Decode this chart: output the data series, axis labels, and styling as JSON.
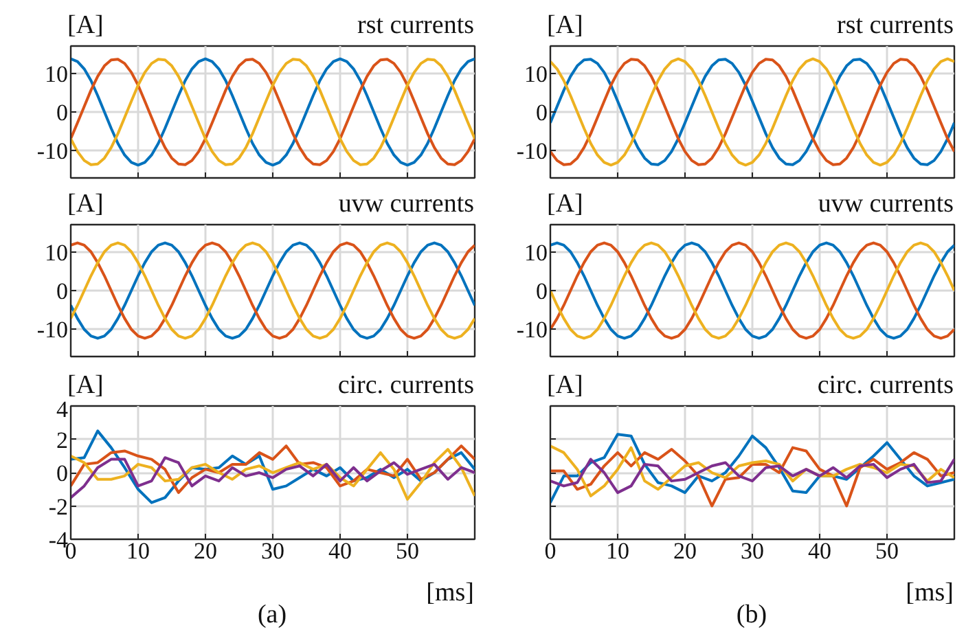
{
  "chart_data": [
    {
      "type": "line",
      "title": "rst currents",
      "ylabel": "[A]",
      "xlim": [
        0,
        60
      ],
      "xticks": [
        0,
        10,
        20,
        30,
        40,
        50
      ],
      "ylim": [
        -17,
        17
      ],
      "yticks": [
        {
          "value": -10,
          "label": "-10"
        },
        0,
        10
      ],
      "grid": true,
      "tick_labels": "y",
      "x": [
        0,
        1,
        2,
        3,
        4,
        5,
        6,
        7,
        8,
        9,
        10,
        11,
        12,
        13,
        14,
        15,
        16,
        17,
        18,
        19,
        20,
        21,
        22,
        23,
        24,
        25,
        26,
        27,
        28,
        29,
        30,
        31,
        32,
        33,
        34,
        35,
        36,
        37,
        38,
        39,
        40,
        41,
        42,
        43,
        44,
        45,
        46,
        47,
        48,
        49,
        50,
        51,
        52,
        53,
        54,
        55,
        56,
        57,
        58,
        59,
        60
      ],
      "series": [
        {
          "color": "#0072bd",
          "values": [
            13.7,
            13.0,
            11.1,
            8.1,
            4.2,
            0,
            -4.2,
            -8.1,
            -11.1,
            -13.0,
            -13.7,
            -13.0,
            -11.1,
            -8.1,
            -4.2,
            0,
            4.2,
            8.1,
            11.1,
            13.0,
            13.7,
            13.0,
            11.1,
            8.1,
            4.2,
            0,
            -4.2,
            -8.1,
            -11.1,
            -13.0,
            -13.7,
            -13.0,
            -11.1,
            -8.1,
            -4.2,
            0,
            4.2,
            8.1,
            11.1,
            13.0,
            13.7,
            13.0,
            11.1,
            8.1,
            4.2,
            0,
            -4.2,
            -8.1,
            -11.1,
            -13.0,
            -13.7,
            -13.0,
            -11.1,
            -8.1,
            -4.2,
            0,
            4.2,
            8.1,
            11.1,
            13.0,
            13.7
          ]
        },
        {
          "color": "#d95319",
          "values": [
            -6.9,
            -2.8,
            1.4,
            5.6,
            9.2,
            11.9,
            13.4,
            13.6,
            12.5,
            10.2,
            6.9,
            2.8,
            -1.4,
            -5.6,
            -9.2,
            -11.9,
            -13.4,
            -13.6,
            -12.5,
            -10.2,
            -6.9,
            -2.8,
            1.4,
            5.6,
            9.2,
            11.9,
            13.4,
            13.6,
            12.5,
            10.2,
            6.9,
            2.8,
            -1.4,
            -5.6,
            -9.2,
            -11.9,
            -13.4,
            -13.6,
            -12.5,
            -10.2,
            -6.9,
            -2.8,
            1.4,
            5.6,
            9.2,
            11.9,
            13.4,
            13.6,
            12.5,
            10.2,
            6.9,
            2.8,
            -1.4,
            -5.6,
            -9.2,
            -11.9,
            -13.4,
            -13.6,
            -12.5,
            -10.2,
            -6.9
          ]
        },
        {
          "color": "#edb120",
          "values": [
            -6.9,
            -10.2,
            -12.5,
            -13.6,
            -13.4,
            -11.9,
            -9.2,
            -5.6,
            -1.4,
            2.8,
            6.9,
            10.2,
            12.5,
            13.6,
            13.4,
            11.9,
            9.2,
            5.6,
            1.4,
            -2.8,
            -6.9,
            -10.2,
            -12.5,
            -13.6,
            -13.4,
            -11.9,
            -9.2,
            -5.6,
            -1.4,
            2.8,
            6.9,
            10.2,
            12.5,
            13.6,
            13.4,
            11.9,
            9.2,
            5.6,
            1.4,
            -2.8,
            -6.9,
            -10.2,
            -12.5,
            -13.6,
            -13.4,
            -11.9,
            -9.2,
            -5.6,
            -1.4,
            2.8,
            6.9,
            10.2,
            12.5,
            13.6,
            13.4,
            11.9,
            9.2,
            5.6,
            1.4,
            -2.8,
            -6.9
          ]
        }
      ]
    },
    {
      "type": "line",
      "title": "rst currents",
      "ylabel": "[A]",
      "xlim": [
        0,
        60
      ],
      "xticks": [
        0,
        10,
        20,
        30,
        40,
        50
      ],
      "ylim": [
        -17,
        17
      ],
      "yticks": [
        {
          "value": -10,
          "label": "-10"
        },
        0,
        10
      ],
      "grid": true,
      "tick_labels": "y",
      "x": [
        0,
        1,
        2,
        3,
        4,
        5,
        6,
        7,
        8,
        9,
        10,
        11,
        12,
        13,
        14,
        15,
        16,
        17,
        18,
        19,
        20,
        21,
        22,
        23,
        24,
        25,
        26,
        27,
        28,
        29,
        30,
        31,
        32,
        33,
        34,
        35,
        36,
        37,
        38,
        39,
        40,
        41,
        42,
        43,
        44,
        45,
        46,
        47,
        48,
        49,
        50,
        51,
        52,
        53,
        54,
        55,
        56,
        57,
        58,
        59,
        60
      ],
      "series": [
        {
          "color": "#0072bd",
          "values": [
            -2.8,
            1.4,
            5.6,
            9.2,
            11.9,
            13.4,
            13.6,
            12.5,
            10.2,
            6.9,
            2.8,
            -1.4,
            -5.6,
            -9.2,
            -11.9,
            -13.4,
            -13.6,
            -12.5,
            -10.2,
            -6.9,
            -2.8,
            1.4,
            5.6,
            9.2,
            11.9,
            13.4,
            13.6,
            12.5,
            10.2,
            6.9,
            2.8,
            -1.4,
            -5.6,
            -9.2,
            -11.9,
            -13.4,
            -13.6,
            -12.5,
            -10.2,
            -6.9,
            -2.8,
            1.4,
            5.6,
            9.2,
            11.9,
            13.4,
            13.6,
            12.5,
            10.2,
            6.9,
            2.8,
            -1.4,
            -5.6,
            -9.2,
            -11.9,
            -13.4,
            -13.6,
            -12.5,
            -10.2,
            -6.9,
            -2.8
          ]
        },
        {
          "color": "#d95319",
          "values": [
            -10.2,
            -12.5,
            -13.6,
            -13.4,
            -11.9,
            -9.2,
            -5.6,
            -1.4,
            2.8,
            6.9,
            10.2,
            12.5,
            13.6,
            13.4,
            11.9,
            9.2,
            5.6,
            1.4,
            -2.8,
            -6.9,
            -10.2,
            -12.5,
            -13.6,
            -13.4,
            -11.9,
            -9.2,
            -5.6,
            -1.4,
            2.8,
            6.9,
            10.2,
            12.5,
            13.6,
            13.4,
            11.9,
            9.2,
            5.6,
            1.4,
            -2.8,
            -6.9,
            -10.2,
            -12.5,
            -13.6,
            -13.4,
            -11.9,
            -9.2,
            -5.6,
            -1.4,
            2.8,
            6.9,
            10.2,
            12.5,
            13.6,
            13.4,
            11.9,
            9.2,
            5.6,
            1.4,
            -2.8,
            -6.9,
            -10.2
          ]
        },
        {
          "color": "#edb120",
          "values": [
            13.0,
            11.1,
            8.1,
            4.2,
            0,
            -4.2,
            -8.1,
            -11.1,
            -13.0,
            -13.7,
            -13.0,
            -11.1,
            -8.1,
            -4.2,
            0,
            4.2,
            8.1,
            11.1,
            13.0,
            13.7,
            13.0,
            11.1,
            8.1,
            4.2,
            0,
            -4.2,
            -8.1,
            -11.1,
            -13.0,
            -13.7,
            -13.0,
            -11.1,
            -8.1,
            -4.2,
            0,
            4.2,
            8.1,
            11.1,
            13.0,
            13.7,
            13.0,
            11.1,
            8.1,
            4.2,
            0,
            -4.2,
            -8.1,
            -11.1,
            -13.0,
            -13.7,
            -13.0,
            -11.1,
            -8.1,
            -4.2,
            0,
            4.2,
            8.1,
            11.1,
            13.0,
            13.7,
            13.0
          ]
        }
      ]
    },
    {
      "type": "line",
      "title": "uvw currents",
      "ylabel": "[A]",
      "xlim": [
        0,
        60
      ],
      "xticks": [
        0,
        10,
        20,
        30,
        40,
        50
      ],
      "ylim": [
        -17,
        17
      ],
      "yticks": [
        {
          "value": -10,
          "label": "-10"
        },
        0,
        10
      ],
      "grid": true,
      "tick_labels": "y",
      "x": [
        0,
        1,
        2,
        3,
        4,
        5,
        6,
        7,
        8,
        9,
        10,
        11,
        12,
        13,
        14,
        15,
        16,
        17,
        18,
        19,
        20,
        21,
        22,
        23,
        24,
        25,
        26,
        27,
        28,
        29,
        30,
        31,
        32,
        33,
        34,
        35,
        36,
        37,
        38,
        39,
        40,
        41,
        42,
        43,
        44,
        45,
        46,
        47,
        48,
        49,
        50,
        51,
        52,
        53,
        54,
        55,
        56,
        57,
        58,
        59,
        60
      ],
      "series": [
        {
          "color": "#0072bd",
          "values": [
            -3.8,
            -7.2,
            -10.0,
            -11.7,
            -12.3,
            -11.7,
            -10.0,
            -7.2,
            -3.8,
            0,
            3.8,
            7.2,
            10.0,
            11.7,
            12.3,
            11.7,
            10.0,
            7.2,
            3.8,
            0,
            -3.8,
            -7.2,
            -10.0,
            -11.7,
            -12.3,
            -11.7,
            -10.0,
            -7.2,
            -3.8,
            0,
            3.8,
            7.2,
            10.0,
            11.7,
            12.3,
            11.7,
            10.0,
            7.2,
            3.8,
            0,
            -3.8,
            -7.2,
            -10.0,
            -11.7,
            -12.3,
            -11.7,
            -10.0,
            -7.2,
            -3.8,
            0,
            3.8,
            7.2,
            10.0,
            11.7,
            12.3,
            11.7,
            10.0,
            7.2,
            3.8,
            0,
            -3.8
          ]
        },
        {
          "color": "#d95319",
          "values": [
            11.7,
            12.3,
            11.7,
            10.0,
            7.2,
            3.8,
            0,
            -3.8,
            -7.2,
            -10.0,
            -11.7,
            -12.3,
            -11.7,
            -10.0,
            -7.2,
            -3.8,
            0,
            3.8,
            7.2,
            10.0,
            11.7,
            12.3,
            11.7,
            10.0,
            7.2,
            3.8,
            0,
            -3.8,
            -7.2,
            -10.0,
            -11.7,
            -12.3,
            -11.7,
            -10.0,
            -7.2,
            -3.8,
            0,
            3.8,
            7.2,
            10.0,
            11.7,
            12.3,
            11.7,
            10.0,
            7.2,
            3.8,
            0,
            -3.8,
            -7.2,
            -10.0,
            -11.7,
            -12.3,
            -11.7,
            -10.0,
            -7.2,
            -3.8,
            0,
            3.8,
            7.2,
            10.0,
            11.7
          ]
        },
        {
          "color": "#edb120",
          "values": [
            -7.2,
            -3.8,
            0,
            3.8,
            7.2,
            10.0,
            11.7,
            12.3,
            11.7,
            10.0,
            7.2,
            3.8,
            0,
            -3.8,
            -7.2,
            -10.0,
            -11.7,
            -12.3,
            -11.7,
            -10.0,
            -7.2,
            -3.8,
            0,
            3.8,
            7.2,
            10.0,
            11.7,
            12.3,
            11.7,
            10.0,
            7.2,
            3.8,
            0,
            -3.8,
            -7.2,
            -10.0,
            -11.7,
            -12.3,
            -11.7,
            -10.0,
            -7.2,
            -3.8,
            0,
            3.8,
            7.2,
            10.0,
            11.7,
            12.3,
            11.7,
            10.0,
            7.2,
            3.8,
            0,
            -3.8,
            -7.2,
            -10.0,
            -11.7,
            -12.3,
            -11.7,
            -10.0,
            -7.2
          ]
        }
      ]
    },
    {
      "type": "line",
      "title": "uvw currents",
      "ylabel": "[A]",
      "xlim": [
        0,
        60
      ],
      "xticks": [
        0,
        10,
        20,
        30,
        40,
        50
      ],
      "ylim": [
        -17,
        17
      ],
      "yticks": [
        {
          "value": -10,
          "label": "-10"
        },
        0,
        10
      ],
      "grid": true,
      "tick_labels": "y",
      "x": [
        0,
        1,
        2,
        3,
        4,
        5,
        6,
        7,
        8,
        9,
        10,
        11,
        12,
        13,
        14,
        15,
        16,
        17,
        18,
        19,
        20,
        21,
        22,
        23,
        24,
        25,
        26,
        27,
        28,
        29,
        30,
        31,
        32,
        33,
        34,
        35,
        36,
        37,
        38,
        39,
        40,
        41,
        42,
        43,
        44,
        45,
        46,
        47,
        48,
        49,
        50,
        51,
        52,
        53,
        54,
        55,
        56,
        57,
        58,
        59,
        60
      ],
      "series": [
        {
          "color": "#0072bd",
          "values": [
            11.7,
            12.3,
            11.7,
            10.0,
            7.2,
            3.8,
            0,
            -3.8,
            -7.2,
            -10.0,
            -11.7,
            -12.3,
            -11.7,
            -10.0,
            -7.2,
            -3.8,
            0,
            3.8,
            7.2,
            10.0,
            11.7,
            12.3,
            11.7,
            10.0,
            7.2,
            3.8,
            0,
            -3.8,
            -7.2,
            -10.0,
            -11.7,
            -12.3,
            -11.7,
            -10.0,
            -7.2,
            -3.8,
            0,
            3.8,
            7.2,
            10.0,
            11.7,
            12.3,
            11.7,
            10.0,
            7.2,
            3.8,
            0,
            -3.8,
            -7.2,
            -10.0,
            -11.7,
            -12.3,
            -11.7,
            -10.0,
            -7.2,
            -3.8,
            0,
            3.8,
            7.2,
            10.0,
            11.7
          ]
        },
        {
          "color": "#d95319",
          "values": [
            -10.0,
            -7.2,
            -3.8,
            0,
            3.8,
            7.2,
            10.0,
            11.7,
            12.3,
            11.7,
            10.0,
            7.2,
            3.8,
            0,
            -3.8,
            -7.2,
            -10.0,
            -11.7,
            -12.3,
            -11.7,
            -10.0,
            -7.2,
            -3.8,
            0,
            3.8,
            7.2,
            10.0,
            11.7,
            12.3,
            11.7,
            10.0,
            7.2,
            3.8,
            0,
            -3.8,
            -7.2,
            -10.0,
            -11.7,
            -12.3,
            -11.7,
            -10.0,
            -7.2,
            -3.8,
            0,
            3.8,
            7.2,
            10.0,
            11.7,
            12.3,
            11.7,
            10.0,
            7.2,
            3.8,
            0,
            -3.8,
            -7.2,
            -10.0,
            -11.7,
            -12.3,
            -11.7,
            -10.0
          ]
        },
        {
          "color": "#edb120",
          "values": [
            0,
            -3.8,
            -7.2,
            -10.0,
            -11.7,
            -12.3,
            -11.7,
            -10.0,
            -7.2,
            -3.8,
            0,
            3.8,
            7.2,
            10.0,
            11.7,
            12.3,
            11.7,
            10.0,
            7.2,
            3.8,
            0,
            -3.8,
            -7.2,
            -10.0,
            -11.7,
            -12.3,
            -11.7,
            -10.0,
            -7.2,
            -3.8,
            0,
            3.8,
            7.2,
            10.0,
            11.7,
            12.3,
            11.7,
            10.0,
            7.2,
            3.8,
            0,
            -3.8,
            -7.2,
            -10.0,
            -11.7,
            -12.3,
            -11.7,
            -10.0,
            -7.2,
            -3.8,
            0,
            3.8,
            7.2,
            10.0,
            11.7,
            12.3,
            11.7,
            10.0,
            7.2,
            3.8,
            0
          ]
        }
      ]
    },
    {
      "type": "line",
      "title": "circ. currents",
      "ylabel": "[A]",
      "xlabel": "[ms]",
      "annotations": [
        "(a)"
      ],
      "xlim": [
        0,
        60
      ],
      "xticks": [
        0,
        10,
        20,
        30,
        40,
        50
      ],
      "ylim": [
        -4,
        4
      ],
      "yticks": [
        {
          "value": -4,
          "label": "-4"
        },
        {
          "value": -2,
          "label": "-2"
        },
        0,
        2,
        4
      ],
      "grid": true,
      "x": [
        0,
        2,
        4,
        6,
        8,
        10,
        12,
        14,
        16,
        18,
        20,
        22,
        24,
        26,
        28,
        30,
        32,
        34,
        36,
        38,
        40,
        42,
        44,
        46,
        48,
        50,
        52,
        54,
        56,
        58,
        60
      ],
      "series": [
        {
          "color": "#0072bd",
          "values": [
            0.8,
            0.9,
            2.5,
            1.5,
            0.3,
            -1.0,
            -1.8,
            -1.5,
            -0.5,
            0.3,
            0.2,
            0.3,
            1.0,
            0.5,
            1.0,
            -1.0,
            -0.8,
            -0.3,
            0.2,
            -0.2,
            0.3,
            -0.5,
            -0.3,
            0.2,
            -0.3,
            0.2,
            -0.5,
            0.0,
            0.8,
            1.2,
            0.2
          ]
        },
        {
          "color": "#d95319",
          "values": [
            -0.8,
            0.5,
            0.6,
            1.2,
            1.3,
            1.0,
            0.8,
            0.2,
            -1.2,
            -0.3,
            0.2,
            0.0,
            0.5,
            0.5,
            1.2,
            0.8,
            1.6,
            0.5,
            0.6,
            0.3,
            -0.8,
            -0.5,
            0.2,
            0.0,
            -0.2,
            0.8,
            -0.4,
            0.0,
            0.8,
            1.6,
            0.8
          ]
        },
        {
          "color": "#edb120",
          "values": [
            1.0,
            0.6,
            -0.4,
            -0.4,
            -0.2,
            0.5,
            0.3,
            -0.5,
            -0.4,
            0.3,
            0.5,
            0.0,
            -0.4,
            0.2,
            0.4,
            0.0,
            0.3,
            0.6,
            0.2,
            0.5,
            -0.3,
            -0.8,
            0.2,
            1.2,
            0.2,
            -1.6,
            -0.6,
            0.6,
            1.4,
            0.3,
            -1.4
          ]
        },
        {
          "color": "#7e2f8e",
          "values": [
            -1.5,
            -0.8,
            0.3,
            0.8,
            0.8,
            -0.8,
            -0.5,
            0.9,
            0.6,
            -0.8,
            -0.2,
            -0.5,
            0.3,
            -0.2,
            0.0,
            -0.3,
            0.2,
            0.4,
            -0.2,
            0.5,
            -0.5,
            0.3,
            -0.5,
            0.1,
            0.6,
            -0.1,
            0.2,
            0.5,
            -0.4,
            0.3,
            0.0
          ]
        }
      ]
    },
    {
      "type": "line",
      "title": "circ. currents",
      "ylabel": "[A]",
      "xlabel": "[ms]",
      "annotations": [
        "(b)"
      ],
      "xlim": [
        0,
        60
      ],
      "xticks": [
        0,
        10,
        20,
        30,
        40,
        50
      ],
      "ylim": [
        -4,
        4
      ],
      "yticks": [
        -4,
        -2,
        0,
        2,
        4
      ],
      "grid": true,
      "tick_labels": "x",
      "x": [
        0,
        2,
        4,
        6,
        8,
        10,
        12,
        14,
        16,
        18,
        20,
        22,
        24,
        26,
        28,
        30,
        32,
        34,
        36,
        38,
        40,
        42,
        44,
        46,
        48,
        50,
        52,
        54,
        56,
        58,
        60
      ],
      "series": [
        {
          "color": "#0072bd",
          "values": [
            -1.8,
            -0.2,
            -0.2,
            0.6,
            0.9,
            2.3,
            2.2,
            0.5,
            -0.6,
            -0.8,
            -1.2,
            -0.2,
            -0.5,
            0.0,
            1.0,
            2.2,
            1.5,
            0.3,
            -1.1,
            -1.2,
            -0.2,
            -0.2,
            -0.4,
            0.3,
            1.0,
            1.8,
            0.8,
            -0.2,
            -0.8,
            -0.6,
            -0.4
          ]
        },
        {
          "color": "#d95319",
          "values": [
            0.1,
            0.1,
            -1.0,
            -0.7,
            0.4,
            1.2,
            0.4,
            1.2,
            0.8,
            1.4,
            0.7,
            -0.2,
            -2.0,
            -0.4,
            -0.3,
            0.5,
            0.5,
            0.0,
            1.5,
            1.3,
            0.2,
            -0.2,
            -2.0,
            0.3,
            0.8,
            0.2,
            0.6,
            1.2,
            0.8,
            -0.2,
            0.0
          ]
        },
        {
          "color": "#edb120",
          "values": [
            1.6,
            1.2,
            0.2,
            -1.4,
            -0.8,
            0.2,
            1.5,
            -0.5,
            -1.0,
            -0.3,
            0.4,
            0.6,
            0.0,
            -0.3,
            0.4,
            0.6,
            0.7,
            0.5,
            -0.5,
            0.2,
            -0.2,
            -0.2,
            0.2,
            0.5,
            0.3,
            0.0,
            0.5,
            0.4,
            -0.5,
            0.2,
            -0.3
          ]
        },
        {
          "color": "#7e2f8e",
          "values": [
            -0.5,
            -0.8,
            -0.6,
            0.8,
            0.0,
            -1.2,
            -0.8,
            0.5,
            0.4,
            -0.5,
            -0.4,
            0.0,
            0.4,
            0.6,
            -0.2,
            -0.5,
            0.3,
            0.4,
            -0.2,
            0.2,
            -0.2,
            0.3,
            -0.3,
            0.4,
            0.5,
            -0.3,
            0.2,
            0.5,
            -0.6,
            -0.5,
            0.8
          ]
        }
      ]
    }
  ]
}
